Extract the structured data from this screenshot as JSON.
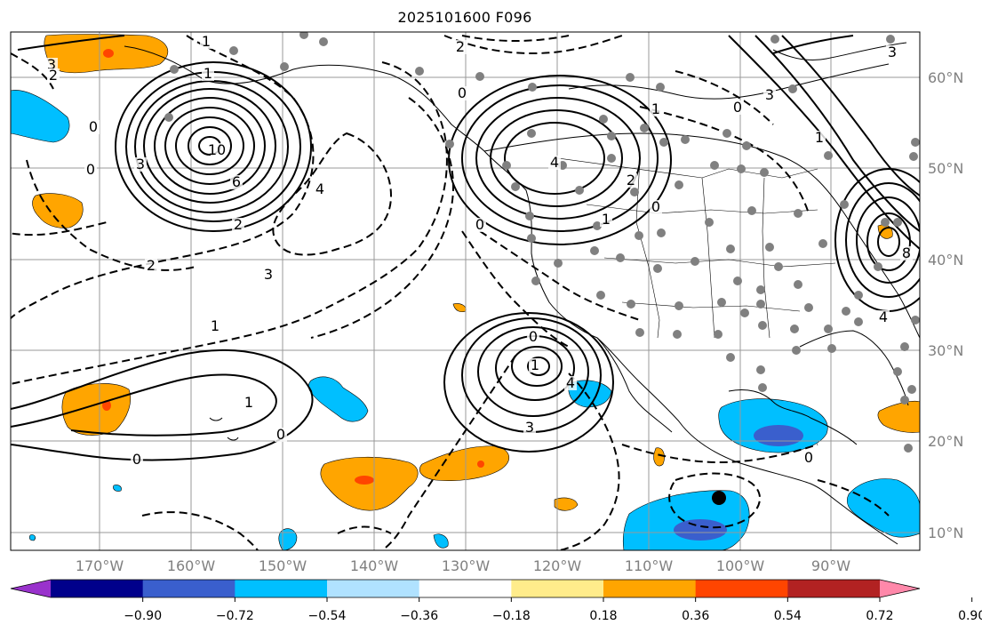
{
  "title": "2025101600 F096",
  "map": {
    "lon_ticks": [
      "170°W",
      "160°W",
      "150°W",
      "140°W",
      "130°W",
      "120°W",
      "110°W",
      "100°W",
      "90°W"
    ],
    "lat_ticks": [
      "60°N",
      "50°N",
      "40°N",
      "30°N",
      "20°N",
      "10°N"
    ],
    "contour_labels": [
      "3",
      "2",
      "1",
      "0",
      "0",
      "3",
      "6",
      "10",
      "4",
      "2",
      "2",
      "3",
      "1",
      "1",
      "0",
      "0",
      "0",
      "1",
      "4",
      "1",
      "2",
      "1",
      "0",
      "0",
      "3",
      "4",
      "2",
      "0",
      "0",
      "0",
      "3",
      "1",
      "4",
      "8",
      "3",
      "1"
    ]
  },
  "colorbar": {
    "ticks": [
      "−0.90",
      "−0.72",
      "−0.54",
      "−0.36",
      "−0.18",
      "0.18",
      "0.36",
      "0.54",
      "0.72",
      "0.90"
    ],
    "colors": [
      "#9932cc",
      "#00008b",
      "#3a5fcd",
      "#00bfff",
      "#b0e2ff",
      "#ffffff",
      "#ffec8b",
      "#ffa500",
      "#ff4500",
      "#b22222",
      "#ff88aa"
    ]
  }
}
